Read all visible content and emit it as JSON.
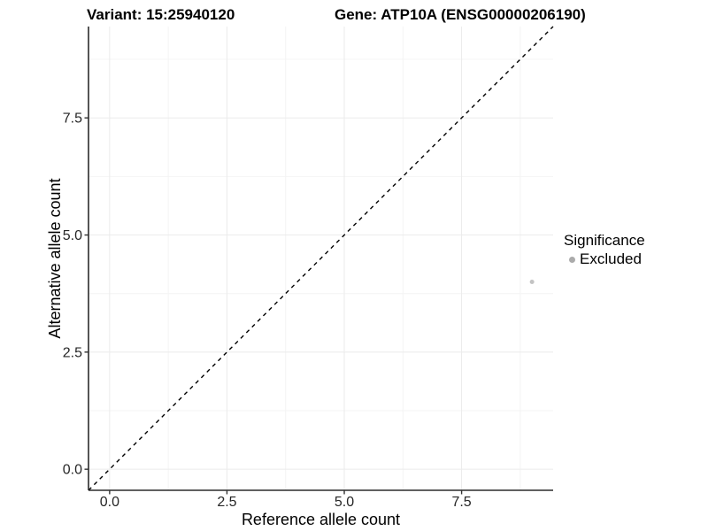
{
  "chart_data": {
    "type": "scatter",
    "titles": [
      "Variant: 15:25940120",
      "Gene: ATP10A (ENSG00000206190)"
    ],
    "xlabel": "Reference allele count",
    "ylabel": "Alternative allele count",
    "xlim": [
      -0.45,
      9.45
    ],
    "ylim": [
      -0.45,
      9.45
    ],
    "x_ticks": {
      "values": [
        0,
        2.5,
        5,
        7.5
      ],
      "labels": [
        "0.0",
        "2.5",
        "5.0",
        "7.5"
      ]
    },
    "y_ticks": {
      "values": [
        0,
        2.5,
        5,
        7.5
      ],
      "labels": [
        "0.0",
        "2.5",
        "5.0",
        "7.5"
      ]
    },
    "grid": {
      "major": true,
      "minor": true,
      "major_color": "#ebebeb",
      "minor_color": "#f4f4f4"
    },
    "reference_line": {
      "kind": "identity y=x",
      "style": "dashed",
      "from": [
        -0.45,
        -0.45
      ],
      "to": [
        9.45,
        9.45
      ],
      "color": "#000000"
    },
    "series": [
      {
        "name": "Excluded",
        "marker": "circle",
        "color": "#c3c3c3",
        "points": [
          [
            9,
            4
          ]
        ]
      }
    ],
    "legend": {
      "title": "Significance",
      "position": "right",
      "entries": [
        {
          "label": "Excluded",
          "marker": "circle",
          "color": "#ababab"
        }
      ]
    },
    "colors": {
      "background": "#ffffff",
      "axis_line": "#2b2b2b",
      "tick_mark": "#333333",
      "tick_label": "#262626",
      "text": "#000000"
    }
  }
}
